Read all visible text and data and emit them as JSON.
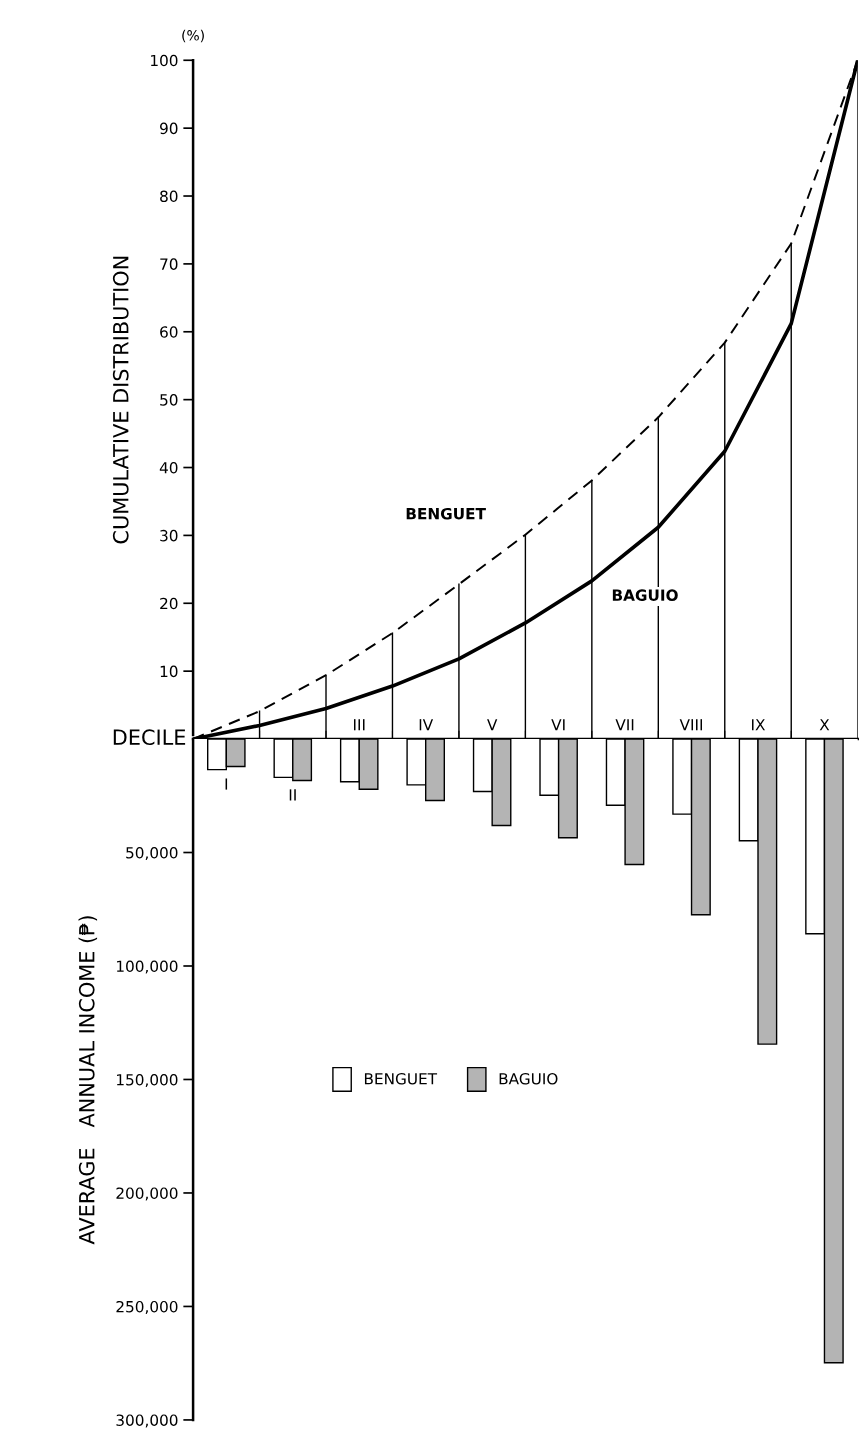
{
  "chart_data": [
    {
      "type": "line",
      "ylabel": "CUMULATIVE DISTRIBUTION",
      "xlabel": "DECILE",
      "annotations": [
        "(%)"
      ],
      "categories": [
        null,
        null,
        null,
        null,
        null,
        null,
        null,
        null,
        null,
        null,
        null
      ],
      "ylim": [
        0,
        100
      ],
      "yticks": [
        10,
        20,
        30,
        40,
        50,
        60,
        70,
        80,
        90,
        100
      ],
      "tick_labels": "y",
      "grid": false,
      "series": [
        {
          "name": "BENGUET",
          "color": "#000000",
          "line_style": "dashed",
          "values": [
            0,
            4.1,
            9.4,
            15.6,
            22.8,
            30.1,
            38.1,
            47.4,
            58.4,
            73,
            100
          ]
        },
        {
          "name": "BAGUIO",
          "color": "#000000",
          "line_style": "solid",
          "values": [
            0,
            2,
            4.5,
            7.8,
            11.8,
            17.1,
            23.3,
            31.2,
            42.4,
            61.2,
            100
          ]
        }
      ]
    },
    {
      "type": "bar",
      "ylabel": "AVERAGE   ANNUAL INCOME (₱)",
      "categories": [
        "I",
        "II",
        "III",
        "IV",
        "V",
        "VI",
        "VII",
        "VIII",
        "IX",
        "X"
      ],
      "ylim": [
        300000,
        0
      ],
      "yticks": [
        {
          "value": 50000,
          "label": "50,000"
        },
        {
          "value": 100000,
          "label": "100,000"
        },
        {
          "value": 150000,
          "label": "150,000"
        },
        {
          "value": 200000,
          "label": "200,000"
        },
        {
          "value": 250000,
          "label": "250,000"
        },
        {
          "value": 300000,
          "label": "300,000"
        }
      ],
      "grid": false,
      "legend": "center",
      "series": [
        {
          "name": "BENGUET",
          "color": "#ffffff",
          "values": [
            13500,
            16900,
            18800,
            20200,
            23100,
            24800,
            29200,
            33100,
            44800,
            85800
          ]
        },
        {
          "name": "BAGUIO",
          "color": "#b4b4b4",
          "values": [
            12100,
            18300,
            22100,
            27100,
            38100,
            43500,
            55300,
            77400,
            134400,
            274800
          ]
        }
      ]
    }
  ]
}
